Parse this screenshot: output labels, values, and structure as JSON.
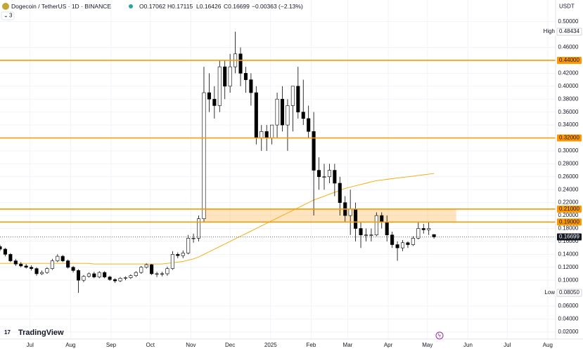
{
  "chart_data": {
    "type": "candlestick",
    "title": "Dogecoin / TetherUS · 1D · BINANCE",
    "ohlc": {
      "open": "O0.17062",
      "high": "H0.17115",
      "low": "L0.16426",
      "close": "C0.16699",
      "change": "−0.00363 (−2.13%)"
    },
    "indicators_count": "3",
    "currency": "USDT",
    "brand": "TradingView",
    "up_color": "#ffffff",
    "down_color": "#000000",
    "x": [
      0,
      4,
      8,
      12,
      16,
      20,
      24,
      28,
      32,
      36,
      40,
      44,
      48,
      52,
      56,
      60,
      64,
      68,
      72,
      76,
      80,
      84,
      88,
      92,
      96,
      100,
      104,
      108,
      112,
      116,
      120,
      124,
      128,
      132,
      136,
      140,
      144,
      148,
      152,
      156,
      160,
      164,
      168,
      172,
      176,
      180,
      184,
      188,
      192,
      196,
      200,
      204,
      208,
      212,
      216,
      220,
      224,
      228,
      232,
      236,
      240,
      244,
      248,
      252,
      256,
      260,
      264,
      268,
      272,
      276,
      280,
      284,
      288,
      292,
      296,
      300,
      304,
      308,
      312,
      316,
      320,
      324,
      328,
      332
    ],
    "open": [
      0.152,
      0.148,
      0.14,
      0.13,
      0.125,
      0.122,
      0.12,
      0.118,
      0.11,
      0.112,
      0.118,
      0.13,
      0.137,
      0.13,
      0.12,
      0.115,
      0.1,
      0.106,
      0.11,
      0.105,
      0.112,
      0.105,
      0.101,
      0.099,
      0.103,
      0.104,
      0.107,
      0.112,
      0.12,
      0.124,
      0.11,
      0.11,
      0.11,
      0.118,
      0.14,
      0.138,
      0.142,
      0.165,
      0.165,
      0.195,
      0.39,
      0.38,
      0.37,
      0.43,
      0.4,
      0.43,
      0.45,
      0.42,
      0.41,
      0.39,
      0.32,
      0.33,
      0.32,
      0.34,
      0.38,
      0.34,
      0.37,
      0.4,
      0.36,
      0.35,
      0.33,
      0.27,
      0.26,
      0.26,
      0.27,
      0.25,
      0.22,
      0.2,
      0.21,
      0.18,
      0.17,
      0.17,
      0.17,
      0.2,
      0.19,
      0.17,
      0.155,
      0.15,
      0.158,
      0.155,
      0.165,
      0.18,
      0.178,
      0.17062
    ],
    "high": [
      0.155,
      0.15,
      0.142,
      0.133,
      0.128,
      0.125,
      0.123,
      0.12,
      0.115,
      0.12,
      0.133,
      0.14,
      0.139,
      0.132,
      0.122,
      0.117,
      0.108,
      0.112,
      0.113,
      0.114,
      0.114,
      0.107,
      0.103,
      0.105,
      0.106,
      0.109,
      0.114,
      0.122,
      0.126,
      0.125,
      0.113,
      0.113,
      0.121,
      0.145,
      0.143,
      0.146,
      0.17,
      0.172,
      0.2,
      0.43,
      0.42,
      0.4,
      0.44,
      0.44,
      0.45,
      0.48434,
      0.46,
      0.43,
      0.42,
      0.4,
      0.34,
      0.34,
      0.34,
      0.39,
      0.4,
      0.38,
      0.4,
      0.43,
      0.41,
      0.37,
      0.36,
      0.29,
      0.28,
      0.28,
      0.28,
      0.26,
      0.23,
      0.24,
      0.22,
      0.19,
      0.18,
      0.18,
      0.205,
      0.205,
      0.2,
      0.175,
      0.16,
      0.162,
      0.16,
      0.168,
      0.19,
      0.187,
      0.19,
      0.17115
    ],
    "low": [
      0.145,
      0.137,
      0.128,
      0.122,
      0.12,
      0.118,
      0.115,
      0.107,
      0.108,
      0.11,
      0.116,
      0.128,
      0.128,
      0.118,
      0.112,
      0.0805,
      0.097,
      0.104,
      0.103,
      0.103,
      0.103,
      0.099,
      0.096,
      0.097,
      0.1,
      0.102,
      0.105,
      0.11,
      0.118,
      0.108,
      0.105,
      0.106,
      0.107,
      0.116,
      0.134,
      0.134,
      0.14,
      0.158,
      0.16,
      0.19,
      0.36,
      0.35,
      0.36,
      0.38,
      0.39,
      0.42,
      0.4,
      0.39,
      0.37,
      0.31,
      0.3,
      0.3,
      0.31,
      0.32,
      0.33,
      0.3,
      0.33,
      0.35,
      0.34,
      0.32,
      0.2,
      0.24,
      0.24,
      0.25,
      0.23,
      0.2,
      0.19,
      0.17,
      0.16,
      0.15,
      0.16,
      0.16,
      0.168,
      0.18,
      0.16,
      0.15,
      0.13,
      0.145,
      0.15,
      0.153,
      0.163,
      0.172,
      0.17,
      0.16426
    ],
    "close": [
      0.148,
      0.14,
      0.13,
      0.125,
      0.122,
      0.12,
      0.118,
      0.11,
      0.112,
      0.118,
      0.13,
      0.137,
      0.13,
      0.12,
      0.115,
      0.1,
      0.106,
      0.11,
      0.105,
      0.112,
      0.105,
      0.101,
      0.099,
      0.103,
      0.104,
      0.107,
      0.112,
      0.12,
      0.124,
      0.11,
      0.11,
      0.11,
      0.118,
      0.14,
      0.138,
      0.142,
      0.165,
      0.165,
      0.195,
      0.39,
      0.38,
      0.37,
      0.43,
      0.4,
      0.43,
      0.45,
      0.42,
      0.41,
      0.39,
      0.32,
      0.33,
      0.32,
      0.34,
      0.38,
      0.34,
      0.37,
      0.4,
      0.36,
      0.35,
      0.33,
      0.27,
      0.26,
      0.26,
      0.27,
      0.25,
      0.22,
      0.2,
      0.21,
      0.18,
      0.17,
      0.17,
      0.17,
      0.2,
      0.19,
      0.17,
      0.155,
      0.15,
      0.158,
      0.155,
      0.165,
      0.18,
      0.178,
      0.18,
      0.16699
    ],
    "ma": {
      "color": "#f7a600",
      "values": [
        0.126,
        0.126,
        0.126,
        0.126,
        0.126,
        0.126,
        0.126,
        0.126,
        0.126,
        0.126,
        0.126,
        0.126,
        0.126,
        0.126,
        0.126,
        0.126,
        0.126,
        0.126,
        0.125,
        0.125,
        0.125,
        0.125,
        0.125,
        0.125,
        0.125,
        0.125,
        0.125,
        0.125,
        0.125,
        0.125,
        0.125,
        0.125,
        0.126,
        0.127,
        0.128,
        0.129,
        0.131,
        0.133,
        0.136,
        0.14,
        0.144,
        0.148,
        0.152,
        0.156,
        0.16,
        0.164,
        0.168,
        0.172,
        0.176,
        0.18,
        0.184,
        0.188,
        0.192,
        0.196,
        0.2,
        0.204,
        0.208,
        0.212,
        0.216,
        0.22,
        0.224,
        0.227,
        0.23,
        0.233,
        0.236,
        0.239,
        0.242,
        0.244,
        0.246,
        0.248,
        0.25,
        0.252,
        0.254,
        0.255,
        0.256,
        0.257,
        0.258,
        0.259,
        0.26,
        0.261,
        0.262,
        0.263,
        0.264,
        0.265
      ]
    },
    "levels": [
      {
        "value": 0.44,
        "label": "0.44000"
      },
      {
        "value": 0.32,
        "label": "0.32000"
      },
      {
        "value": 0.21,
        "label": "0.21000"
      },
      {
        "value": 0.19,
        "label": "0.19000"
      }
    ],
    "level_color": "#ff9800",
    "zone": {
      "x": [
        156,
        349
      ],
      "y": [
        0.19,
        0.21
      ],
      "color": "#ff9800"
    },
    "last_price": {
      "value": 0.16699,
      "label": "0.16699"
    },
    "high_marker": {
      "text": "High",
      "value": 0.48434,
      "label": "0.48434"
    },
    "low_marker": {
      "text": "Low",
      "value": 0.0805,
      "label": "0.08050"
    },
    "xlim": [
      0,
      425
    ],
    "ylim": [
      0.009,
      0.504
    ],
    "xticks": [
      {
        "value": 23,
        "label": "Jul"
      },
      {
        "value": 54,
        "label": "Aug"
      },
      {
        "value": 85,
        "label": "Sep"
      },
      {
        "value": 115,
        "label": "Oct"
      },
      {
        "value": 146,
        "label": "Nov"
      },
      {
        "value": 176,
        "label": "Dec"
      },
      {
        "value": 207,
        "label": "2025"
      },
      {
        "value": 238,
        "label": "Feb"
      },
      {
        "value": 266,
        "label": "Mar"
      },
      {
        "value": 297,
        "label": "Apr"
      },
      {
        "value": 327,
        "label": "May"
      },
      {
        "value": 358,
        "label": "Jun"
      },
      {
        "value": 388,
        "label": "Jul"
      },
      {
        "value": 419,
        "label": "Aug"
      }
    ],
    "yticks": [
      {
        "value": 0.5,
        "label": "0.50000"
      },
      {
        "value": 0.46,
        "label": "0.46000"
      },
      {
        "value": 0.42,
        "label": "0.42000"
      },
      {
        "value": 0.4,
        "label": "0.40000"
      },
      {
        "value": 0.38,
        "label": "0.38000"
      },
      {
        "value": 0.36,
        "label": "0.36000"
      },
      {
        "value": 0.34,
        "label": "0.34000"
      },
      {
        "value": 0.3,
        "label": "0.30000"
      },
      {
        "value": 0.28,
        "label": "0.28000"
      },
      {
        "value": 0.26,
        "label": "0.26000"
      },
      {
        "value": 0.24,
        "label": "0.24000"
      },
      {
        "value": 0.22,
        "label": "0.22000"
      },
      {
        "value": 0.2,
        "label": "0.20000"
      },
      {
        "value": 0.18,
        "label": "0.18000"
      },
      {
        "value": 0.16,
        "label": "0.16000"
      },
      {
        "value": 0.14,
        "label": "0.14000"
      },
      {
        "value": 0.12,
        "label": "0.12000"
      },
      {
        "value": 0.1,
        "label": "0.10000"
      },
      {
        "value": 0.06,
        "label": "0.06000"
      },
      {
        "value": 0.04,
        "label": "0.04000"
      },
      {
        "value": 0.02,
        "label": "0.02000"
      }
    ],
    "grid": true
  }
}
